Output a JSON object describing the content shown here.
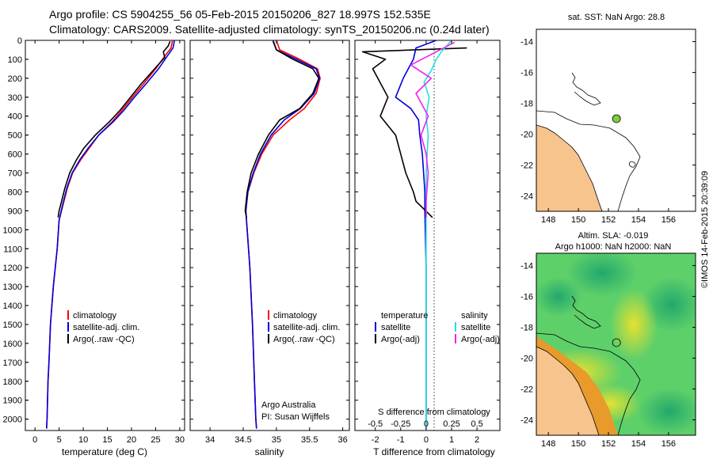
{
  "header": {
    "line1": "Argo profile: CS 5904255_56 05-Feb-2015 20150206_827 18.997S 152.535E",
    "line2": "Climatology: CARS2009. Satellite-adjusted climatology: synTS_20150206.nc (0.24d later)"
  },
  "watermark": "©IMOS 14-Feb-2015 20:39:09",
  "colors": {
    "climatology": "#ff0000",
    "satellite": "#0000dd",
    "argo": "#000000",
    "sal_satellite": "#22e0e0",
    "sal_argo": "#ee22ee",
    "land": "#f7c48e"
  },
  "chart_data": [
    {
      "type": "line",
      "name": "temperature-profile",
      "title": "",
      "xlabel": "temperature (deg C)",
      "ylabel": "",
      "xlim": [
        -2,
        31
      ],
      "ylim": [
        2060,
        0
      ],
      "xticks": [
        0,
        5,
        10,
        15,
        20,
        25,
        30
      ],
      "yticks": [
        0,
        100,
        200,
        300,
        400,
        500,
        600,
        700,
        800,
        900,
        1000,
        1100,
        1200,
        1300,
        1400,
        1500,
        1600,
        1700,
        1800,
        1900,
        2000
      ],
      "legend": [
        "climatology",
        "satellite-adj. clim.",
        "Argo(..raw -QC)"
      ],
      "series": [
        {
          "name": "climatology",
          "color": "#ff0000",
          "x": [
            28.5,
            28.2,
            27.0,
            25.0,
            22.5,
            20.2,
            18.0,
            16.0,
            13.2,
            11.2,
            9.5,
            7.8,
            6.7,
            5.8,
            5.0,
            4.6,
            3.8,
            3.2,
            2.9,
            2.7,
            2.6,
            2.5,
            2.4
          ],
          "y": [
            0,
            40,
            80,
            150,
            230,
            300,
            370,
            430,
            500,
            570,
            630,
            700,
            780,
            870,
            950,
            1100,
            1300,
            1500,
            1700,
            1800,
            1900,
            2000,
            2050
          ]
        },
        {
          "name": "satellite-adj. clim.",
          "color": "#0000dd",
          "x": [
            28.9,
            28.6,
            27.5,
            25.6,
            23.0,
            20.6,
            18.4,
            16.2,
            13.2,
            11.0,
            9.3,
            7.7,
            6.6,
            5.7,
            5.0,
            4.6,
            3.8,
            3.2,
            2.9,
            2.7,
            2.6,
            2.5,
            2.4
          ],
          "y": [
            0,
            40,
            80,
            150,
            230,
            300,
            370,
            430,
            500,
            570,
            630,
            700,
            780,
            870,
            950,
            1100,
            1300,
            1500,
            1700,
            1800,
            1900,
            2000,
            2050
          ]
        },
        {
          "name": "Argo(..raw -QC)",
          "color": "#000000",
          "x": [
            28.0,
            27.6,
            26.6,
            26.9,
            24.8,
            22.0,
            19.8,
            17.6,
            15.4,
            12.5,
            10.1,
            8.6,
            7.2,
            6.2,
            5.5,
            5.0,
            4.8
          ],
          "y": [
            5,
            30,
            60,
            90,
            150,
            230,
            300,
            370,
            430,
            500,
            570,
            630,
            700,
            780,
            850,
            900,
            935
          ]
        }
      ]
    },
    {
      "type": "line",
      "name": "salinity-profile",
      "title": "",
      "xlabel": "salinity",
      "ylabel": "",
      "xlim": [
        33.7,
        36.1
      ],
      "ylim": [
        2060,
        0
      ],
      "xticks": [
        34,
        34.5,
        35,
        35.5,
        36
      ],
      "legend": [
        "climatology",
        "satellite-adj. clim.",
        "Argo(..raw -QC)"
      ],
      "annotation": [
        "Argo Australia",
        "PI: Susan Wijffels"
      ],
      "series": [
        {
          "name": "climatology",
          "color": "#ff0000",
          "x": [
            35.0,
            35.05,
            35.35,
            35.62,
            35.66,
            35.6,
            35.42,
            35.2,
            34.95,
            34.78,
            34.66,
            34.57,
            34.54,
            34.56,
            34.6,
            34.64,
            34.67,
            34.69,
            34.7
          ],
          "y": [
            0,
            50,
            100,
            150,
            200,
            280,
            360,
            420,
            500,
            600,
            700,
            800,
            900,
            1000,
            1200,
            1500,
            1800,
            2000,
            2050
          ]
        },
        {
          "name": "satellite-adj. clim.",
          "color": "#0000dd",
          "x": [
            34.95,
            35.0,
            35.3,
            35.6,
            35.65,
            35.57,
            35.36,
            35.12,
            34.92,
            34.76,
            34.65,
            34.57,
            34.54,
            34.56,
            34.6,
            34.64,
            34.67,
            34.69,
            34.7
          ],
          "y": [
            0,
            50,
            100,
            150,
            200,
            280,
            360,
            420,
            500,
            600,
            700,
            800,
            900,
            1000,
            1200,
            1500,
            1800,
            2000,
            2050
          ]
        },
        {
          "name": "Argo(..raw -QC)",
          "color": "#000000",
          "x": [
            34.95,
            35.0,
            35.25,
            35.55,
            35.64,
            35.55,
            35.35,
            35.05,
            34.88,
            34.73,
            34.62,
            34.56,
            34.53,
            34.55
          ],
          "y": [
            5,
            50,
            100,
            150,
            200,
            280,
            360,
            420,
            500,
            600,
            700,
            800,
            900,
            935
          ]
        }
      ]
    },
    {
      "type": "line",
      "name": "difference-profile",
      "title": "",
      "xlabel": "T difference from climatology",
      "x2label": "S difference from climatology",
      "xlim": [
        -2.8,
        2.9
      ],
      "x2lim": [
        -0.7,
        0.725
      ],
      "ylim": [
        2060,
        0
      ],
      "xticks": [
        -2,
        -1,
        0,
        1,
        2
      ],
      "x2ticks": [
        -0.5,
        -0.25,
        0,
        0.25,
        0.5
      ],
      "legend": [
        "temperature",
        "satellite",
        "Argo(-adj)",
        "salinity",
        "satellite",
        "Argo(-adj)"
      ],
      "series": [
        {
          "name": "temperature satellite",
          "color": "#0000dd",
          "axis": "T",
          "x": [
            0.4,
            -0.4,
            -0.5,
            -0.9,
            -1.2,
            -0.6,
            -0.3,
            -0.25,
            -0.15,
            -0.1,
            -0.05,
            -0.05,
            0.0,
            0.0
          ],
          "y": [
            0,
            40,
            100,
            200,
            300,
            360,
            420,
            500,
            600,
            700,
            800,
            900,
            1200,
            2050
          ]
        },
        {
          "name": "temperature Argo(-adj)",
          "color": "#000000",
          "axis": "T",
          "x": [
            1.6,
            -2.5,
            -1.6,
            -2.1,
            -1.9,
            -1.5,
            -1.8,
            -1.2,
            -1.0,
            -0.8,
            -0.5,
            -0.4,
            0.25
          ],
          "y": [
            40,
            60,
            100,
            150,
            200,
            300,
            400,
            500,
            600,
            700,
            800,
            850,
            935
          ]
        },
        {
          "name": "salinity satellite",
          "color": "#22e0e0",
          "axis": "S",
          "x": [
            0.25,
            0.15,
            0.1,
            0.05,
            -0.02,
            0.03,
            0.0,
            0.02,
            0.0,
            0.0,
            0.0
          ],
          "y": [
            0,
            60,
            100,
            160,
            220,
            300,
            400,
            500,
            700,
            900,
            2050
          ]
        },
        {
          "name": "salinity Argo(-adj)",
          "color": "#ee22ee",
          "axis": "S",
          "x": [
            0.28,
            0.1,
            -0.15,
            0.05,
            -0.1,
            0.02,
            -0.05,
            0.0,
            0.02,
            0.0,
            0.0
          ],
          "y": [
            10,
            60,
            130,
            200,
            280,
            400,
            500,
            600,
            700,
            850,
            935
          ]
        }
      ]
    },
    {
      "type": "heatmap",
      "name": "sst-map",
      "title": "sat. SST: NaN Argo: 28.8",
      "xlim": [
        147.2,
        157.8
      ],
      "ylim": [
        -25.0,
        -13.2
      ],
      "xticks": [
        148,
        150,
        152,
        154,
        156
      ],
      "yticks": [
        -14,
        -16,
        -18,
        -20,
        -22,
        -24
      ],
      "marker": {
        "lon": 152.535,
        "lat": -18.997
      }
    },
    {
      "type": "heatmap",
      "name": "sla-map",
      "title": "Altim. SLA: -0.019",
      "subtitle": "Argo h1000: NaN h2000: NaN",
      "xlim": [
        147.2,
        157.8
      ],
      "ylim": [
        -25.0,
        -13.2
      ],
      "xticks": [
        148,
        150,
        152,
        154,
        156
      ],
      "yticks": [
        -14,
        -16,
        -18,
        -20,
        -22,
        -24
      ],
      "marker": {
        "lon": 152.535,
        "lat": -18.997
      }
    }
  ]
}
